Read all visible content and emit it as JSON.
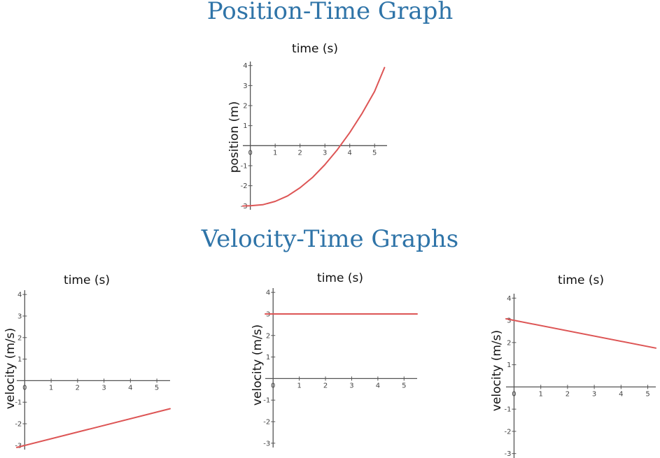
{
  "headings": {
    "position": "Position-Time Graph",
    "velocity": "Velocity-Time Graphs"
  },
  "colors": {
    "heading": "#2f74a8",
    "line": "#dd5555",
    "axis": "#555555"
  },
  "chart_data": [
    {
      "id": "position",
      "type": "line",
      "xlabel": "time (s)",
      "ylabel": "position (m)",
      "xlim": [
        -0.3,
        5.5
      ],
      "ylim": [
        -3.2,
        4.2
      ],
      "xticks": [
        0,
        1,
        2,
        3,
        4,
        5
      ],
      "yticks": [
        -3,
        -2,
        -1,
        1,
        2,
        3,
        4
      ],
      "grid": false,
      "series": [
        {
          "x": [
            -0.3,
            0,
            0.5,
            1,
            1.5,
            2,
            2.5,
            3,
            3.5,
            4,
            4.5,
            5,
            5.4
          ],
          "y": [
            -3.01,
            -3.0,
            -2.95,
            -2.78,
            -2.51,
            -2.1,
            -1.59,
            -0.95,
            -0.2,
            0.65,
            1.62,
            2.71,
            3.9
          ]
        }
      ]
    },
    {
      "id": "velocity-increasing",
      "type": "line",
      "xlabel": "time (s)",
      "ylabel": "velocity (m/s)",
      "xlim": [
        -0.3,
        5.5
      ],
      "ylim": [
        -3.2,
        4.2
      ],
      "xticks": [
        0,
        1,
        2,
        3,
        4,
        5
      ],
      "yticks": [
        -3,
        -2,
        -1,
        1,
        2,
        3,
        4
      ],
      "grid": false,
      "series": [
        {
          "x": [
            -0.3,
            5.5
          ],
          "y": [
            -3.1,
            -1.3
          ]
        }
      ]
    },
    {
      "id": "velocity-constant",
      "type": "line",
      "xlabel": "time (s)",
      "ylabel": "velocity (m/s)",
      "xlim": [
        -0.3,
        5.5
      ],
      "ylim": [
        -3.2,
        4.2
      ],
      "xticks": [
        0,
        1,
        2,
        3,
        4,
        5
      ],
      "yticks": [
        -3,
        -2,
        -1,
        1,
        2,
        3,
        4
      ],
      "grid": false,
      "series": [
        {
          "x": [
            -0.3,
            5.5
          ],
          "y": [
            3.0,
            3.0
          ]
        }
      ]
    },
    {
      "id": "velocity-decreasing",
      "type": "line",
      "xlabel": "time (s)",
      "ylabel": "velocity (m/s)",
      "xlim": [
        -0.3,
        5.3
      ],
      "ylim": [
        -3.2,
        4.2
      ],
      "xticks": [
        0,
        1,
        2,
        3,
        4,
        5
      ],
      "yticks": [
        -3,
        -2,
        -1,
        1,
        2,
        3,
        4
      ],
      "grid": false,
      "series": [
        {
          "x": [
            -0.3,
            5.3
          ],
          "y": [
            3.07,
            1.75
          ]
        }
      ]
    }
  ]
}
